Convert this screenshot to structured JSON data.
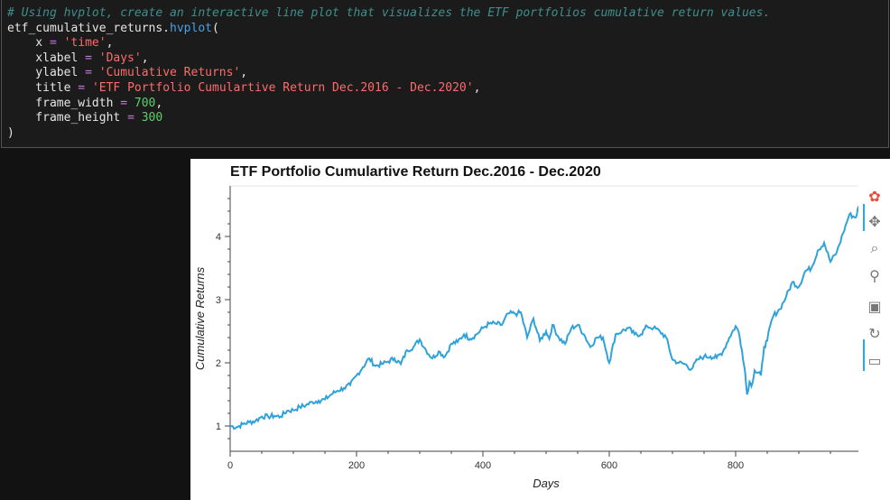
{
  "code": {
    "lines": [
      [
        {
          "t": "# Using hvplot, create an interactive line plot that visualizes the ETF portfolios cumulative return values.",
          "c": "comment"
        }
      ],
      [
        {
          "t": "etf_cumulative_returns.",
          "c": "plain"
        },
        {
          "t": "hvplot",
          "c": "func"
        },
        {
          "t": "(",
          "c": "plain"
        }
      ],
      [
        {
          "t": "    x ",
          "c": "plain"
        },
        {
          "t": "=",
          "c": "op"
        },
        {
          "t": " ",
          "c": "plain"
        },
        {
          "t": "'time'",
          "c": "str"
        },
        {
          "t": ",",
          "c": "plain"
        }
      ],
      [
        {
          "t": "    xlabel ",
          "c": "plain"
        },
        {
          "t": "=",
          "c": "op"
        },
        {
          "t": " ",
          "c": "plain"
        },
        {
          "t": "'Days'",
          "c": "str"
        },
        {
          "t": ",",
          "c": "plain"
        }
      ],
      [
        {
          "t": "    ylabel ",
          "c": "plain"
        },
        {
          "t": "=",
          "c": "op"
        },
        {
          "t": " ",
          "c": "plain"
        },
        {
          "t": "'Cumulative Returns'",
          "c": "str"
        },
        {
          "t": ",",
          "c": "plain"
        }
      ],
      [
        {
          "t": "    title ",
          "c": "plain"
        },
        {
          "t": "=",
          "c": "op"
        },
        {
          "t": " ",
          "c": "plain"
        },
        {
          "t": "'ETF Portfolio Cumulartive Return Dec.2016 - Dec.2020'",
          "c": "str"
        },
        {
          "t": ",",
          "c": "plain"
        }
      ],
      [
        {
          "t": "    frame_width ",
          "c": "plain"
        },
        {
          "t": "=",
          "c": "op"
        },
        {
          "t": " ",
          "c": "plain"
        },
        {
          "t": "700",
          "c": "num"
        },
        {
          "t": ",",
          "c": "plain"
        }
      ],
      [
        {
          "t": "    frame_height ",
          "c": "plain"
        },
        {
          "t": "=",
          "c": "op"
        },
        {
          "t": " ",
          "c": "plain"
        },
        {
          "t": "300",
          "c": "num"
        }
      ],
      [
        {
          "t": ")",
          "c": "plain"
        }
      ]
    ]
  },
  "colors": {
    "line": "#30a2da",
    "comment": "#3f8f8c",
    "string": "#ff6b6b",
    "number": "#5fcf6a",
    "operator": "#c678dd",
    "function": "#4aa0e6"
  },
  "toolbar": {
    "tools": [
      {
        "name": "bokeh-logo-icon",
        "glyph": "✿"
      },
      {
        "name": "pan-icon",
        "glyph": "✥"
      },
      {
        "name": "box-zoom-icon",
        "glyph": "⌕"
      },
      {
        "name": "wheel-zoom-icon",
        "glyph": "⚲"
      },
      {
        "name": "save-icon",
        "glyph": "▣"
      },
      {
        "name": "reset-icon",
        "glyph": "↻"
      },
      {
        "name": "hover-icon",
        "glyph": "▭"
      }
    ]
  },
  "chart_data": {
    "type": "line",
    "title": "ETF Portfolio Cumulartive Return Dec.2016 - Dec.2020",
    "xlabel": "Days",
    "ylabel": "Cumulative Returns",
    "xlim": [
      0,
      1000
    ],
    "ylim": [
      0.6,
      4.8
    ],
    "x_ticks": [
      0,
      200,
      400,
      600,
      800
    ],
    "y_ticks": [
      1,
      2,
      3,
      4
    ],
    "grid": false,
    "series": [
      {
        "x": [
          0,
          10,
          20,
          30,
          40,
          50,
          60,
          70,
          80,
          90,
          100,
          110,
          120,
          130,
          140,
          150,
          160,
          170,
          180,
          190,
          200,
          210,
          220,
          230,
          240,
          250,
          260,
          270,
          280,
          290,
          300,
          310,
          320,
          330,
          340,
          350,
          360,
          370,
          380,
          390,
          400,
          410,
          420,
          430,
          440,
          450,
          455,
          460,
          470,
          480,
          490,
          500,
          505,
          510,
          520,
          530,
          540,
          550,
          560,
          570,
          580,
          590,
          600,
          610,
          620,
          630,
          640,
          650,
          660,
          670,
          680,
          690,
          700,
          710,
          720,
          730,
          740,
          750,
          760,
          770,
          780,
          790,
          800,
          805,
          810,
          815,
          818,
          822,
          825,
          830,
          840,
          845,
          850,
          855,
          860,
          870,
          880,
          890,
          900,
          910,
          920,
          930,
          940,
          950,
          960,
          970,
          980,
          990,
          995
        ],
        "y": [
          1.0,
          0.98,
          1.03,
          1.06,
          1.08,
          1.15,
          1.15,
          1.16,
          1.15,
          1.24,
          1.25,
          1.3,
          1.33,
          1.38,
          1.4,
          1.42,
          1.5,
          1.56,
          1.6,
          1.65,
          1.8,
          1.93,
          2.07,
          1.95,
          1.98,
          2.02,
          2.07,
          1.98,
          2.2,
          2.25,
          2.37,
          2.2,
          2.07,
          2.18,
          2.1,
          2.3,
          2.33,
          2.45,
          2.38,
          2.45,
          2.55,
          2.62,
          2.62,
          2.6,
          2.78,
          2.78,
          2.78,
          2.8,
          2.4,
          2.7,
          2.35,
          2.5,
          2.38,
          2.6,
          2.4,
          2.3,
          2.55,
          2.6,
          2.45,
          2.25,
          2.4,
          2.4,
          2.0,
          2.45,
          2.5,
          2.55,
          2.45,
          2.45,
          2.58,
          2.55,
          2.5,
          2.4,
          2.05,
          2.0,
          1.98,
          1.9,
          2.05,
          2.1,
          2.1,
          2.08,
          2.18,
          2.4,
          2.58,
          2.48,
          2.2,
          1.85,
          1.5,
          1.7,
          1.63,
          1.88,
          1.8,
          2.25,
          2.35,
          2.6,
          2.75,
          2.85,
          3.05,
          3.28,
          3.2,
          3.45,
          3.5,
          3.78,
          3.9,
          3.6,
          3.75,
          4.05,
          4.35,
          4.3,
          4.48
        ]
      }
    ]
  }
}
